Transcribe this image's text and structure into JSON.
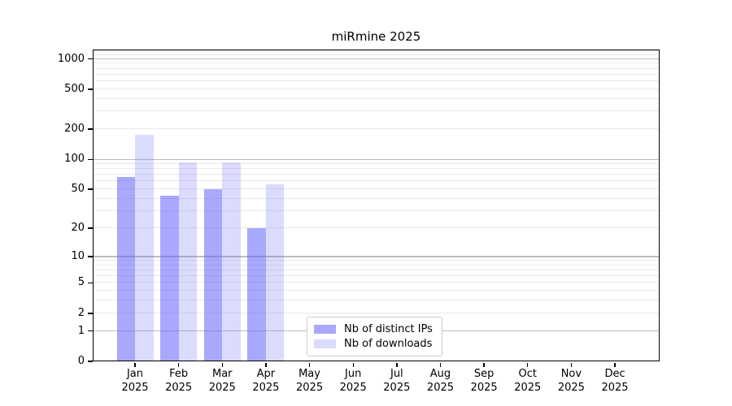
{
  "chart_data": {
    "type": "bar",
    "title": "miRmine 2025",
    "scale": "log10(value+1)",
    "ylim": [
      0,
      1242
    ],
    "y_ticks": [
      0,
      1,
      2,
      5,
      10,
      20,
      50,
      100,
      200,
      500,
      1000
    ],
    "grid": true,
    "legend_position": "bottom-center-left",
    "categories": [
      {
        "month": "Jan",
        "year": "2025"
      },
      {
        "month": "Feb",
        "year": "2025"
      },
      {
        "month": "Mar",
        "year": "2025"
      },
      {
        "month": "Apr",
        "year": "2025"
      },
      {
        "month": "May",
        "year": "2025"
      },
      {
        "month": "Jun",
        "year": "2025"
      },
      {
        "month": "Jul",
        "year": "2025"
      },
      {
        "month": "Aug",
        "year": "2025"
      },
      {
        "month": "Sep",
        "year": "2025"
      },
      {
        "month": "Oct",
        "year": "2025"
      },
      {
        "month": "Nov",
        "year": "2025"
      },
      {
        "month": "Dec",
        "year": "2025"
      }
    ],
    "series": [
      {
        "name": "Nb of distinct IPs",
        "color": "#6464fa",
        "alpha": 0.56,
        "values": [
          66,
          43,
          50,
          20,
          0,
          0,
          0,
          0,
          0,
          0,
          0,
          0
        ]
      },
      {
        "name": "Nb of downloads",
        "color": "#6464fa",
        "alpha": 0.235,
        "values": [
          177,
          93,
          94,
          56,
          0,
          0,
          0,
          0,
          0,
          0,
          0,
          0
        ]
      }
    ]
  }
}
